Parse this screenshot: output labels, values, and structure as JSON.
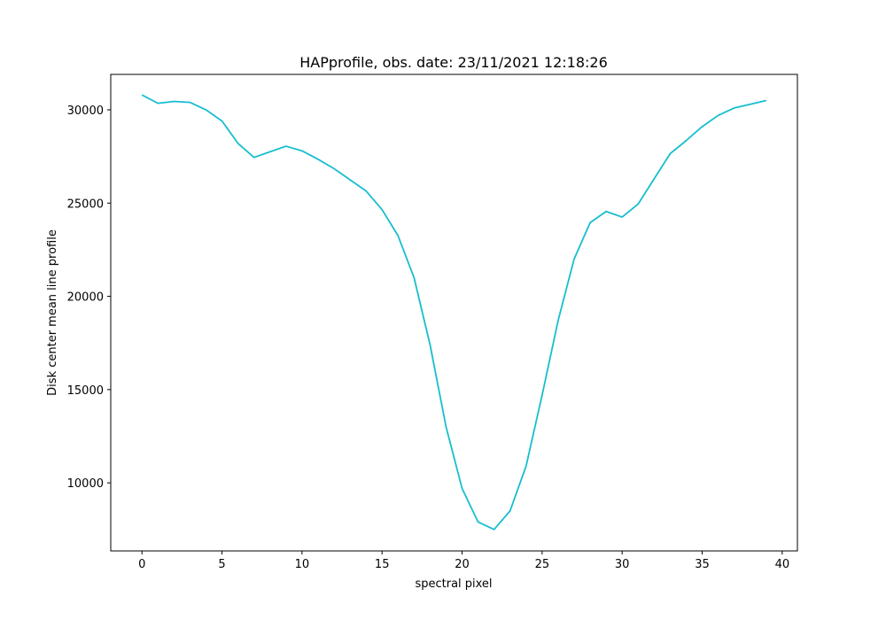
{
  "chart_data": {
    "type": "line",
    "title": "HAPprofile, obs. date: 23/11/2021 12:18:26",
    "xlabel": "spectral pixel",
    "ylabel": "Disk center mean line profile",
    "xlim": [
      -1.95,
      40.95
    ],
    "ylim": [
      6350,
      31900
    ],
    "xticks": [
      0,
      5,
      10,
      15,
      20,
      25,
      30,
      35,
      40
    ],
    "yticks": [
      10000,
      15000,
      20000,
      25000,
      30000
    ],
    "grid": false,
    "line_color": "#17becf",
    "series": [
      {
        "x": [
          0,
          1,
          2,
          3,
          4,
          5,
          6,
          7,
          8,
          9,
          10,
          11,
          12,
          13,
          14,
          15,
          16,
          17,
          18,
          19,
          20,
          21,
          22,
          23,
          24,
          25,
          26,
          27,
          28,
          29,
          30,
          31,
          32,
          33,
          34,
          35,
          36,
          37,
          38,
          39
        ],
        "values": [
          30800,
          30350,
          30450,
          30400,
          30000,
          29400,
          28200,
          27450,
          27750,
          28050,
          27800,
          27350,
          26850,
          26250,
          25650,
          24650,
          23250,
          21000,
          17400,
          13000,
          9700,
          7900,
          7500,
          8500,
          10900,
          14700,
          18700,
          22000,
          23950,
          24550,
          24250,
          24950,
          26300,
          27650,
          28350,
          29100,
          29700,
          30100,
          30300,
          30500
        ]
      }
    ]
  }
}
